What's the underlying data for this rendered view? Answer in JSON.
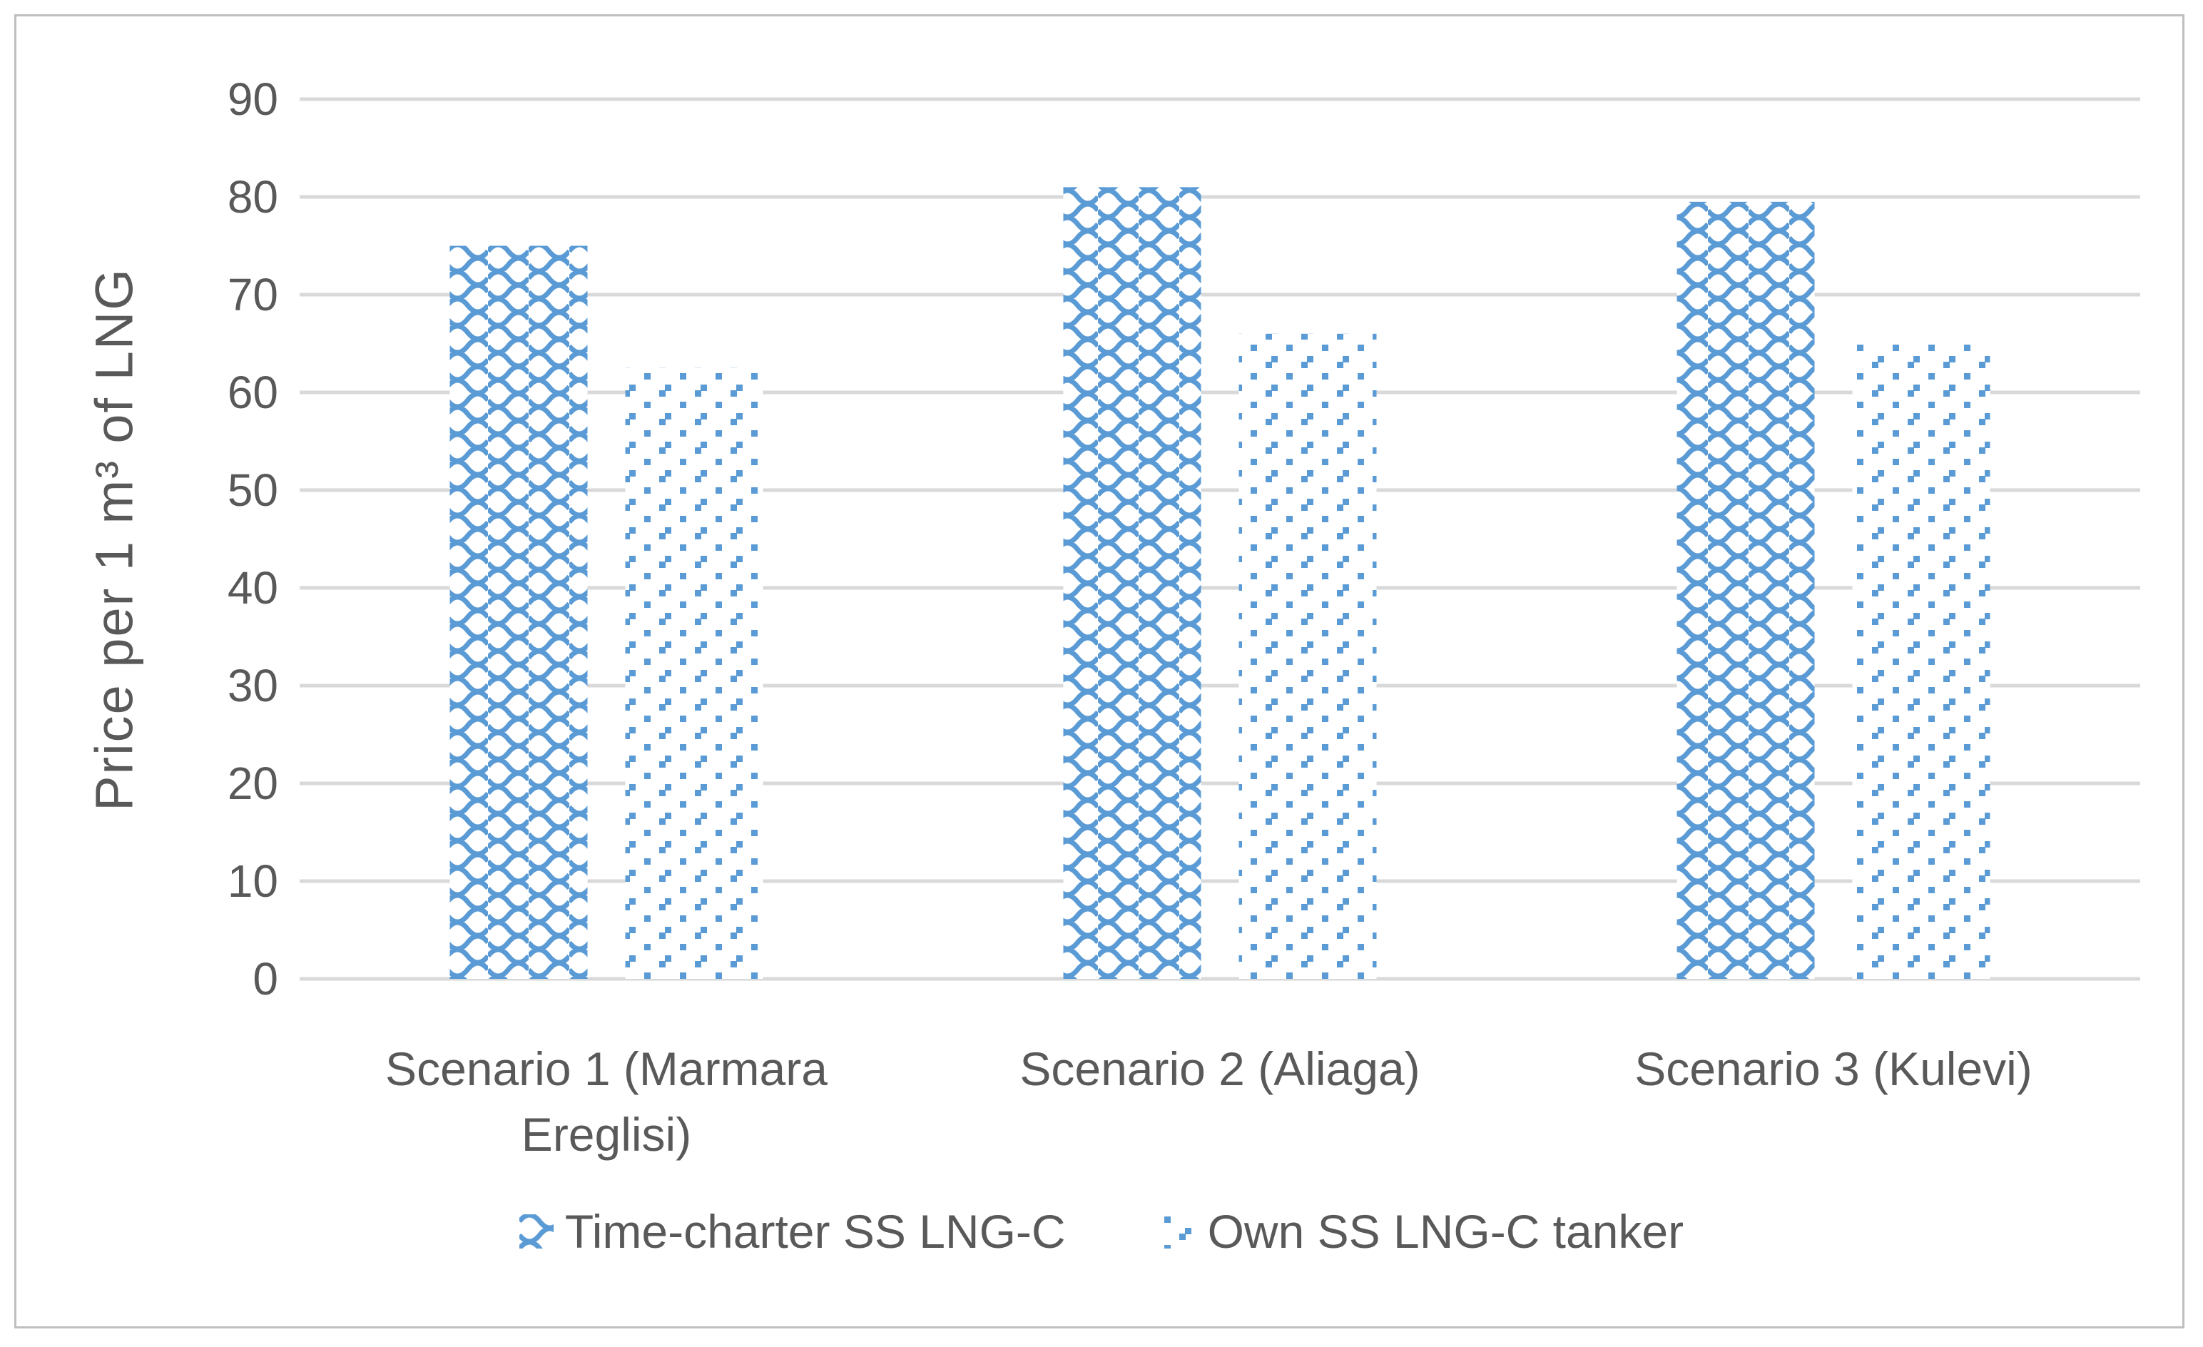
{
  "figure": {
    "background": "#FFFFFF",
    "border_color": "#BFBFBF"
  },
  "chart_data": {
    "type": "bar",
    "title": "",
    "categories": [
      "Scenario 1 (Marmara Ereglisi)",
      "Scenario 2 (Aliaga)",
      "Scenario 3 (Kulevi)"
    ],
    "series": [
      {
        "name": "Time-charter SS LNG-C",
        "pattern": "wave",
        "values": [
          75,
          81,
          79.5
        ]
      },
      {
        "name": "Own SS LNG-C tanker",
        "pattern": "dots",
        "values": [
          62.5,
          66,
          65
        ]
      }
    ],
    "xlabel": "",
    "ylabel": "Price per 1 m³ of LNG",
    "ylim": [
      0,
      90
    ],
    "yticks": [
      0,
      10,
      20,
      30,
      40,
      50,
      60,
      70,
      80,
      90
    ],
    "grid": true,
    "legend_position": "bottom",
    "colors": {
      "bar_blue": "#5B9BD5",
      "gridline": "#D9D9D9",
      "text": "#595959"
    }
  }
}
